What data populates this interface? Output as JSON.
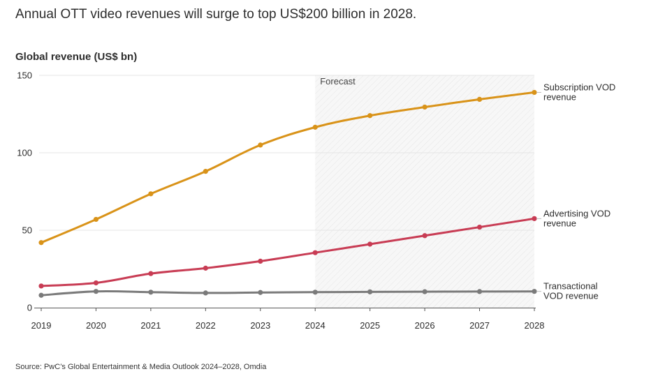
{
  "header": {
    "headline": "Annual OTT video revenues will surge to top US$200 billion in 2028."
  },
  "footer": {
    "source": "Source: PwC’s Global Entertainment & Media Outlook 2024–2028, Omdia"
  },
  "chart_data": {
    "type": "line",
    "title": "",
    "ylabel": "Global revenue (US$ bn)",
    "xlabel": "",
    "x": [
      2019,
      2020,
      2021,
      2022,
      2023,
      2024,
      2025,
      2026,
      2027,
      2028
    ],
    "ylim": [
      0,
      150
    ],
    "yticks": [
      0,
      50,
      100,
      150
    ],
    "grid": true,
    "forecast": {
      "label": "Forecast",
      "from": 2024,
      "to": 2028
    },
    "series": [
      {
        "name": "Subscription VOD revenue",
        "label_lines": [
          "Subscription VOD",
          "revenue"
        ],
        "color": "#d99319",
        "values": [
          42,
          57,
          73.5,
          88,
          105,
          116.5,
          124,
          129.5,
          134.5,
          139
        ]
      },
      {
        "name": "Advertising VOD revenue",
        "label_lines": [
          "Advertising VOD",
          "revenue"
        ],
        "color": "#c83c54",
        "values": [
          14,
          16,
          22,
          25.5,
          30,
          35.5,
          41,
          46.5,
          52,
          57.5
        ]
      },
      {
        "name": "Transactional VOD revenue",
        "label_lines": [
          "Transactional",
          "VOD revenue"
        ],
        "color": "#7a7a7a",
        "values": [
          8,
          10.5,
          10,
          9.5,
          9.8,
          10,
          10.2,
          10.3,
          10.4,
          10.5
        ]
      }
    ]
  }
}
